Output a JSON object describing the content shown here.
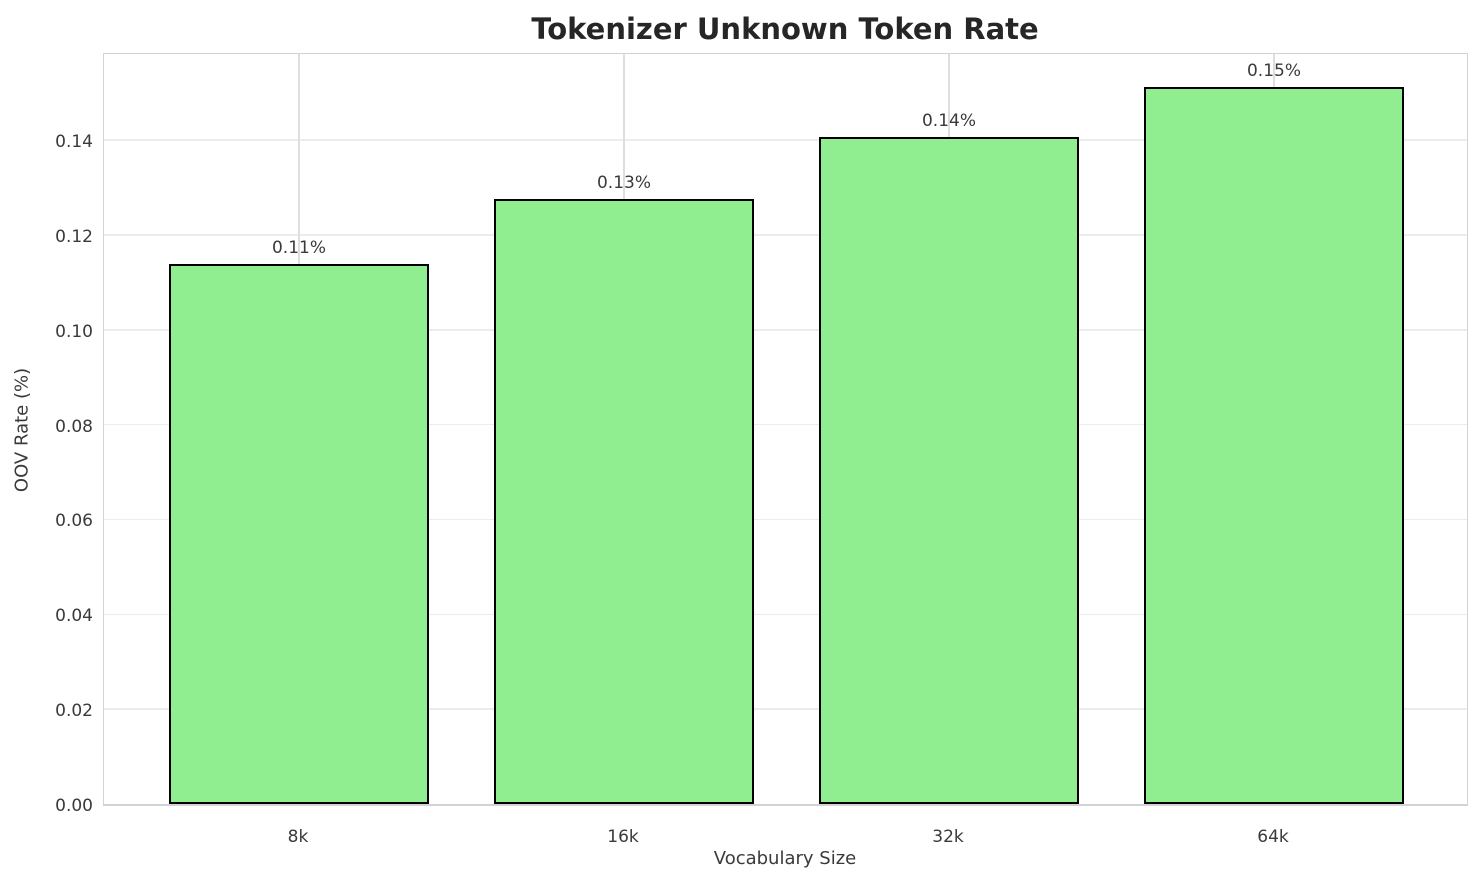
{
  "chart_data": {
    "type": "bar",
    "title": "Tokenizer Unknown Token Rate",
    "xlabel": "Vocabulary Size",
    "ylabel": "OOV Rate (%)",
    "categories": [
      "8k",
      "16k",
      "32k",
      "64k"
    ],
    "values": [
      0.1138,
      0.1275,
      0.1406,
      0.1512
    ],
    "bar_labels": [
      "0.11%",
      "0.13%",
      "0.14%",
      "0.15%"
    ],
    "ylim": [
      0,
      0.1588
    ],
    "yticks": [
      0,
      0.02,
      0.04,
      0.06,
      0.08,
      0.1,
      0.12,
      0.14
    ],
    "ytick_labels": [
      "0.00",
      "0.02",
      "0.04",
      "0.06",
      "0.08",
      "0.10",
      "0.12",
      "0.14"
    ],
    "grid": true,
    "legend_position": "none",
    "bar_width_fraction": 0.8,
    "colors": {
      "background": "#ffffff",
      "bar_fill": "#90EE90",
      "bar_edge": "#000000",
      "grid": "#ececec",
      "grid_vertical": "#dedede",
      "spine": "#d3d3d3",
      "title_text": "#262626",
      "tick_text": "#3a3a3a",
      "label_text": "#3a3a3a"
    }
  }
}
